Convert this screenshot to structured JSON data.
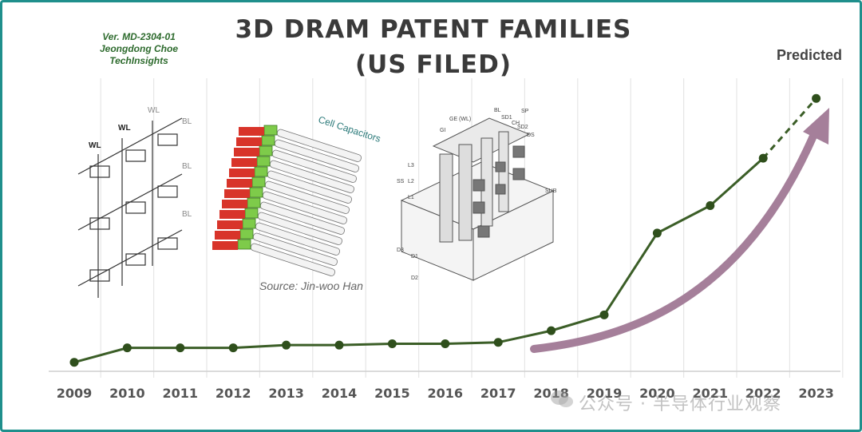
{
  "header": {
    "title_line1": "3D DRAM PATENT FAMILIES",
    "title_line2": "(US FILED)",
    "version": "Ver. MD-2304-01",
    "author": "Jeongdong Choe",
    "org": "TechInsights"
  },
  "annotations": {
    "predicted": "Predicted",
    "source": "Source: Jin-woo Han",
    "cell_capacitors": "Cell Capacitors",
    "watermark": "公众号 · 半导体行业观察"
  },
  "schematic_labels": {
    "wl": "WL",
    "bl": "BL"
  },
  "structure_labels": [
    "GE (WL)",
    "GI",
    "BL",
    "SD1",
    "CH",
    "SP",
    "SD2",
    "DS",
    "L3",
    "L2",
    "L1",
    "SS",
    "SUB",
    "D3",
    "D1",
    "D2"
  ],
  "colors": {
    "border": "#1f8f8c",
    "line": "#3b5e27",
    "marker": "#2f4f1c",
    "arrow": "#a57f9a",
    "title": "#3a3a3a"
  },
  "chart_data": {
    "type": "line",
    "categories": [
      "2009",
      "2010",
      "2011",
      "2012",
      "2013",
      "2014",
      "2015",
      "2016",
      "2017",
      "2018",
      "2019",
      "2020",
      "2021",
      "2022",
      "2023"
    ],
    "values": [
      5,
      26,
      26,
      26,
      30,
      30,
      32,
      32,
      34,
      51,
      74,
      193,
      233,
      302,
      389
    ],
    "predicted_from_index": 13,
    "xlabel": "",
    "ylabel": "",
    "ylim": [
      0,
      430
    ],
    "grid": "vertical",
    "title": "3D DRAM PATENT FAMILIES (US FILED)"
  }
}
